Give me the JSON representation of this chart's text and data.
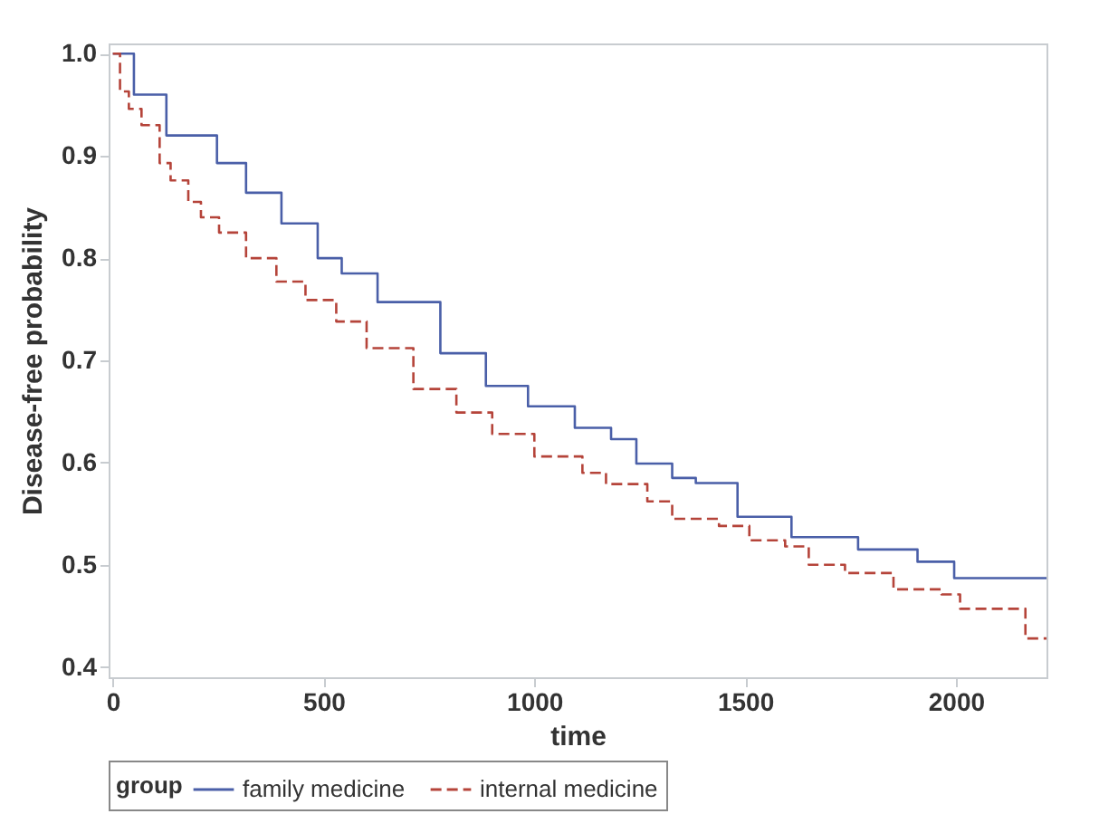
{
  "chart_data": {
    "type": "step",
    "xlabel": "time",
    "ylabel": "Disease-free probability",
    "legend_title": "group",
    "legend": "bottom",
    "grid": false,
    "marker": "none",
    "xlim": [
      -10,
      2215
    ],
    "xticks": [
      0,
      500,
      1000,
      1500,
      2000
    ],
    "ylim": [
      0.39,
      1.01
    ],
    "yticks": [
      0.4,
      0.5,
      0.6,
      0.7,
      0.8,
      0.9,
      {
        "value": 1,
        "label": "1.0"
      }
    ],
    "series": [
      {
        "name": "family medicine",
        "color": "#4a5fa8",
        "line_style": "solid",
        "x": [
          0,
          50,
          127,
          247,
          316,
          400,
          486,
          543,
          628,
          777,
          885,
          985,
          1096,
          1182,
          1242,
          1327,
          1383,
          1482,
          1610,
          1768,
          1909,
          1996,
          2215
        ],
        "values": [
          1.0,
          0.96,
          0.92,
          0.893,
          0.864,
          0.834,
          0.8,
          0.785,
          0.757,
          0.707,
          0.675,
          0.655,
          0.634,
          0.623,
          0.599,
          0.585,
          0.58,
          0.547,
          0.527,
          0.515,
          0.503,
          0.487,
          0.487
        ]
      },
      {
        "name": "internal medicine",
        "color": "#b5443a",
        "line_style": "dashed",
        "x": [
          0,
          17,
          38,
          68,
          111,
          137,
          179,
          209,
          252,
          316,
          388,
          457,
          530,
          602,
          713,
          815,
          900,
          1000,
          1114,
          1170,
          1268,
          1327,
          1438,
          1510,
          1595,
          1651,
          1737,
          1852,
          1966,
          2010,
          2165,
          2215
        ],
        "values": [
          1.0,
          0.963,
          0.946,
          0.93,
          0.893,
          0.876,
          0.855,
          0.84,
          0.825,
          0.8,
          0.777,
          0.759,
          0.738,
          0.712,
          0.672,
          0.649,
          0.628,
          0.606,
          0.59,
          0.579,
          0.562,
          0.545,
          0.538,
          0.524,
          0.518,
          0.5,
          0.492,
          0.476,
          0.471,
          0.457,
          0.428,
          0.428
        ]
      }
    ]
  }
}
